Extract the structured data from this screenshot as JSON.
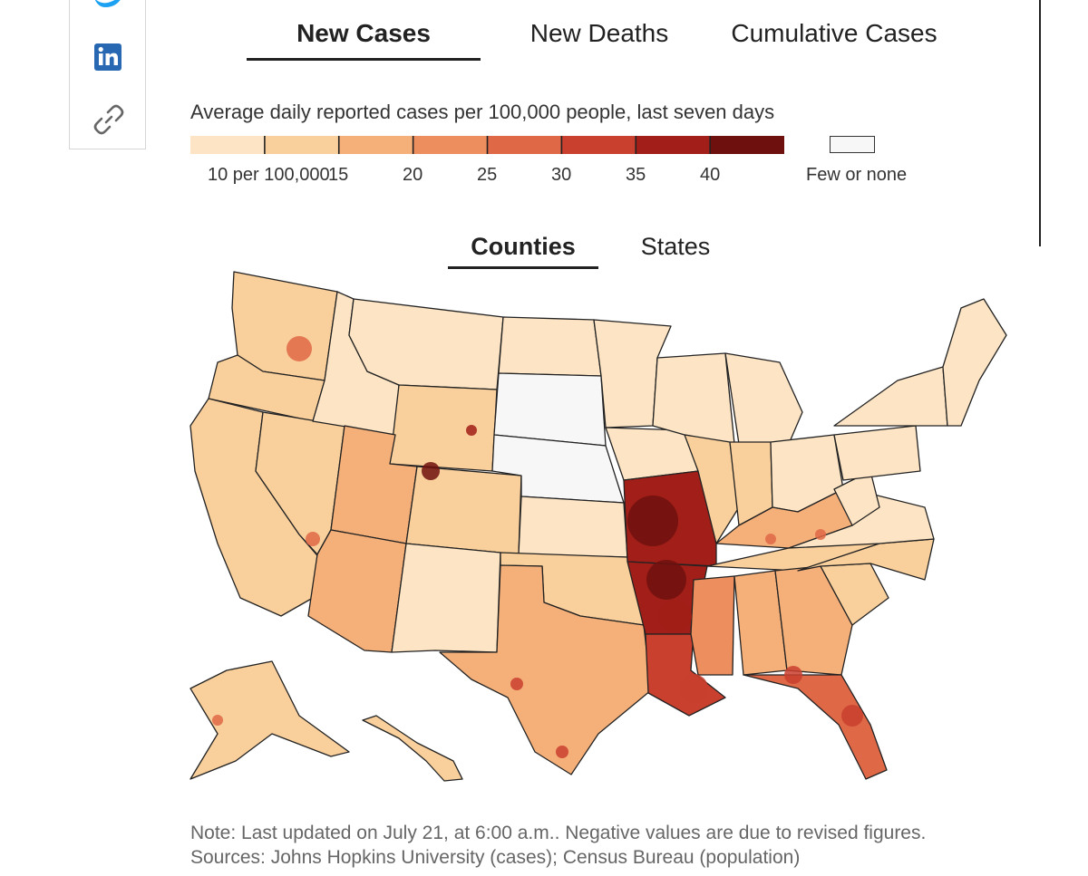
{
  "tabs": {
    "metric": [
      {
        "label": "New Cases",
        "active": true
      },
      {
        "label": "New Deaths",
        "active": false
      },
      {
        "label": "Cumulative Cases",
        "active": false
      }
    ],
    "geography": [
      {
        "label": "Counties",
        "active": true
      },
      {
        "label": "States",
        "active": false
      }
    ]
  },
  "legend": {
    "title": "Average daily reported cases per 100,000 people, last seven days",
    "breaks": [
      "10 per 100,000",
      "15",
      "20",
      "25",
      "30",
      "35",
      "40"
    ],
    "colors": [
      "#fce4c4",
      "#f9cf9c",
      "#f5b07a",
      "#ec8e5e",
      "#df6847",
      "#c9402e",
      "#a11f18",
      "#6e110e"
    ],
    "few_label": "Few or none",
    "few_color": "#f7f7f7"
  },
  "map": {
    "states": [
      {
        "name": "WA",
        "class": 1
      },
      {
        "name": "OR",
        "class": 1
      },
      {
        "name": "CA",
        "class": 1
      },
      {
        "name": "NV",
        "class": 1
      },
      {
        "name": "ID",
        "class": 0
      },
      {
        "name": "MT",
        "class": 0
      },
      {
        "name": "WY",
        "class": 1
      },
      {
        "name": "UT",
        "class": 2
      },
      {
        "name": "AZ",
        "class": 2
      },
      {
        "name": "CO",
        "class": 1
      },
      {
        "name": "NM",
        "class": 0
      },
      {
        "name": "ND",
        "class": 0
      },
      {
        "name": "SD",
        "class": -1
      },
      {
        "name": "NE",
        "class": -1
      },
      {
        "name": "KS",
        "class": 0
      },
      {
        "name": "OK",
        "class": 1
      },
      {
        "name": "TX",
        "class": 2
      },
      {
        "name": "MN",
        "class": 0
      },
      {
        "name": "IA",
        "class": 0
      },
      {
        "name": "MO",
        "class": 6
      },
      {
        "name": "AR",
        "class": 6
      },
      {
        "name": "LA",
        "class": 5
      },
      {
        "name": "WI",
        "class": 0
      },
      {
        "name": "IL",
        "class": 1
      },
      {
        "name": "MI",
        "class": 0
      },
      {
        "name": "IN",
        "class": 1
      },
      {
        "name": "OH",
        "class": 0
      },
      {
        "name": "KY",
        "class": 2
      },
      {
        "name": "TN",
        "class": 1
      },
      {
        "name": "MS",
        "class": 3
      },
      {
        "name": "AL",
        "class": 2
      },
      {
        "name": "GA",
        "class": 2
      },
      {
        "name": "FL",
        "class": 4
      },
      {
        "name": "SC",
        "class": 1
      },
      {
        "name": "NC",
        "class": 1
      },
      {
        "name": "VA",
        "class": 0
      },
      {
        "name": "WV",
        "class": 0
      },
      {
        "name": "PA",
        "class": 0
      },
      {
        "name": "NY",
        "class": 0
      },
      {
        "name": "NE-states",
        "class": 0
      },
      {
        "name": "AK",
        "class": 1
      },
      {
        "name": "HI",
        "class": 1
      }
    ]
  },
  "notes": {
    "note": "Note: Last updated on July 21, at 6:00 a.m.. Negative values are due to revised figures.",
    "sources": "Sources: Johns Hopkins University (cases); Census Bureau (population)"
  }
}
